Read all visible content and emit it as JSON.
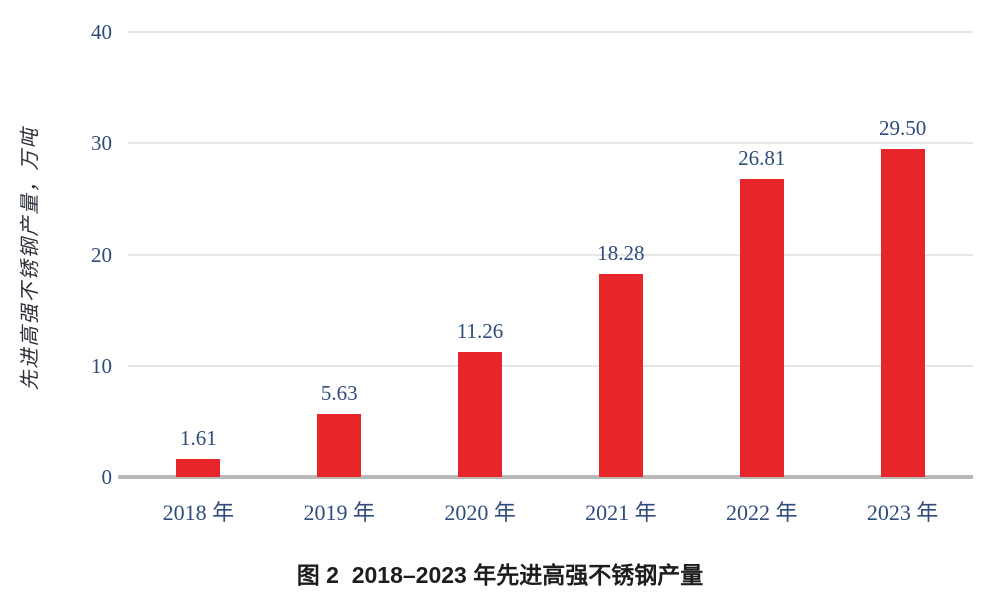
{
  "chart_data": {
    "type": "bar",
    "categories": [
      "2018 年",
      "2019 年",
      "2020 年",
      "2021 年",
      "2022 年",
      "2023 年"
    ],
    "values": [
      1.61,
      5.63,
      11.26,
      18.28,
      26.81,
      29.5
    ],
    "value_labels": [
      "1.61",
      "5.63",
      "11.26",
      "18.28",
      "26.81",
      "29.50"
    ],
    "ylabel": "先进高强不锈钢产量，万吨",
    "xlabel": "",
    "ylim": [
      0,
      40
    ],
    "yticks": [
      0,
      10,
      20,
      30,
      40
    ],
    "grid": true,
    "legend_position": "none",
    "bar_color": "#e8262a",
    "grid_color": "#e7e7e7",
    "axis_line_color": "#b9b9b9",
    "tick_label_color": "#2f4c7c",
    "value_label_color": "#2f4c7c"
  },
  "caption": "图 2  2018–2023 年先进高强不锈钢产量"
}
